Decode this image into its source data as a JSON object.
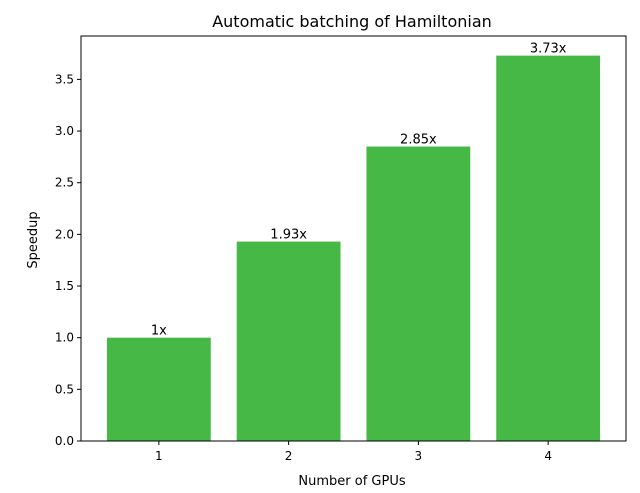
{
  "chart_data": {
    "type": "bar",
    "title": "Automatic batching of Hamiltonian",
    "xlabel": "Number of GPUs",
    "ylabel": "Speedup",
    "categories": [
      "1",
      "2",
      "3",
      "4"
    ],
    "values": [
      1.0,
      1.93,
      2.85,
      3.73
    ],
    "data_labels": [
      "1x",
      "1.93x",
      "2.85x",
      "3.73x"
    ],
    "ylim": [
      0,
      3.92
    ],
    "yticks": [
      {
        "value": 0.0,
        "label": "0.0"
      },
      {
        "value": 0.5,
        "label": "0.5"
      },
      {
        "value": 1.0,
        "label": "1.0"
      },
      {
        "value": 1.5,
        "label": "1.5"
      },
      {
        "value": 2.0,
        "label": "2.0"
      },
      {
        "value": 2.5,
        "label": "2.5"
      },
      {
        "value": 3.0,
        "label": "3.0"
      },
      {
        "value": 3.5,
        "label": "3.5"
      }
    ],
    "bar_color": "#45b845",
    "grid": false,
    "legend": "none"
  }
}
